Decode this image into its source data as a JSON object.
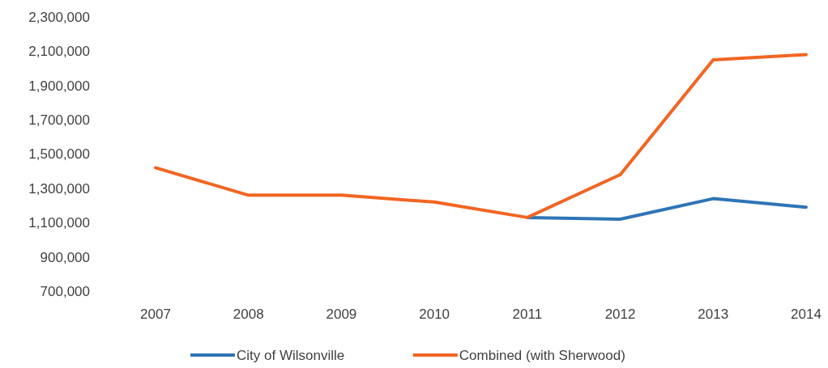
{
  "chart_data": {
    "type": "line",
    "categories": [
      "2007",
      "2008",
      "2009",
      "2010",
      "2011",
      "2012",
      "2013",
      "2014"
    ],
    "series": [
      {
        "name": "City of Wilsonville",
        "color": "#2e75b6",
        "values": [
          null,
          null,
          null,
          null,
          1130000,
          1120000,
          1240000,
          1190000
        ]
      },
      {
        "name": "Combined (with Sherwood)",
        "color": "#f26522",
        "values": [
          1420000,
          1260000,
          1260000,
          1220000,
          1130000,
          1380000,
          2050000,
          2080000
        ]
      }
    ],
    "ylim": [
      700000,
      2300000
    ],
    "yticks": [
      {
        "value": 700000,
        "label": "700,000"
      },
      {
        "value": 900000,
        "label": "900,000"
      },
      {
        "value": 1100000,
        "label": "1,100,000"
      },
      {
        "value": 1300000,
        "label": "1,300,000"
      },
      {
        "value": 1500000,
        "label": "1,500,000"
      },
      {
        "value": 1700000,
        "label": "1,700,000"
      },
      {
        "value": 1900000,
        "label": "1,900,000"
      },
      {
        "value": 2100000,
        "label": "2,100,000"
      },
      {
        "value": 2300000,
        "label": "2,300,000"
      }
    ],
    "legend": "bottom",
    "marker": "none",
    "line_style": "solid"
  }
}
